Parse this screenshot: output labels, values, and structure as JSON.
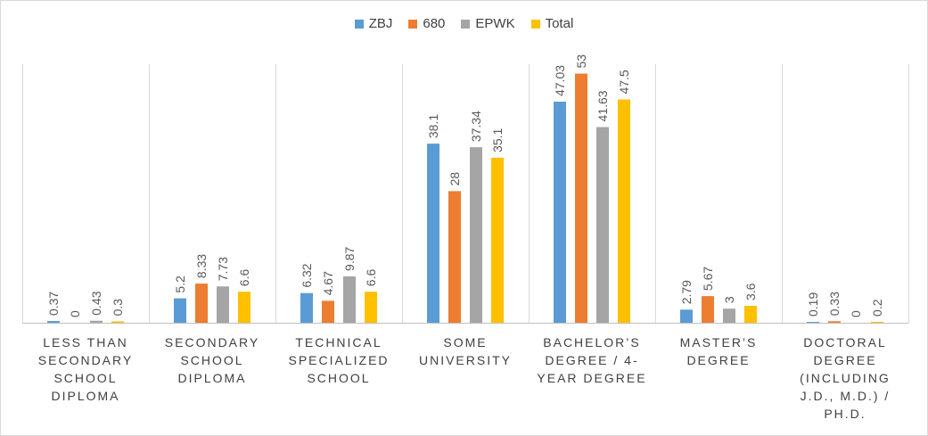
{
  "chart_data": {
    "type": "bar",
    "title": "",
    "xlabel": "",
    "ylabel": "",
    "ylim": [
      0,
      55
    ],
    "grid": "vertical category separators",
    "legend_position": "top",
    "categories": [
      "LESS THAN SECONDARY SCHOOL DIPLOMA",
      "SECONDARY SCHOOL DIPLOMA",
      "TECHNICAL SPECIALIZED SCHOOL",
      "SOME UNIVERSITY",
      "BACHELOR’S DEGREE / 4-YEAR DEGREE",
      "MASTER’S DEGREE",
      "DOCTORAL DEGREE (INCLUDING J.D., M.D.) / PH.D."
    ],
    "series": [
      {
        "name": "ZBJ",
        "color": "#5b9bd5",
        "values": [
          0.37,
          5.2,
          6.32,
          38.1,
          47.03,
          2.79,
          0.19
        ]
      },
      {
        "name": "680",
        "color": "#ed7d31",
        "values": [
          0,
          8.33,
          4.67,
          28,
          53,
          5.67,
          0.33
        ]
      },
      {
        "name": "EPWK",
        "color": "#a5a5a5",
        "values": [
          0.43,
          7.73,
          9.87,
          37.34,
          41.63,
          3,
          0
        ]
      },
      {
        "name": "Total",
        "color": "#ffc000",
        "values": [
          0.3,
          6.6,
          6.6,
          35.1,
          47.5,
          3.6,
          0.2
        ]
      }
    ],
    "data_labels": [
      [
        "0.37",
        "5.2",
        "6.32",
        "38.1",
        "47.03",
        "2.79",
        "0.19"
      ],
      [
        "0",
        "8.33",
        "4.67",
        "28",
        "53",
        "5.67",
        "0.33"
      ],
      [
        "0.43",
        "7.73",
        "9.87",
        "37.34",
        "41.63",
        "3",
        "0"
      ],
      [
        "0.3",
        "6.6",
        "6.6",
        "35.1",
        "47.5",
        "3.6",
        "0.2"
      ]
    ]
  }
}
